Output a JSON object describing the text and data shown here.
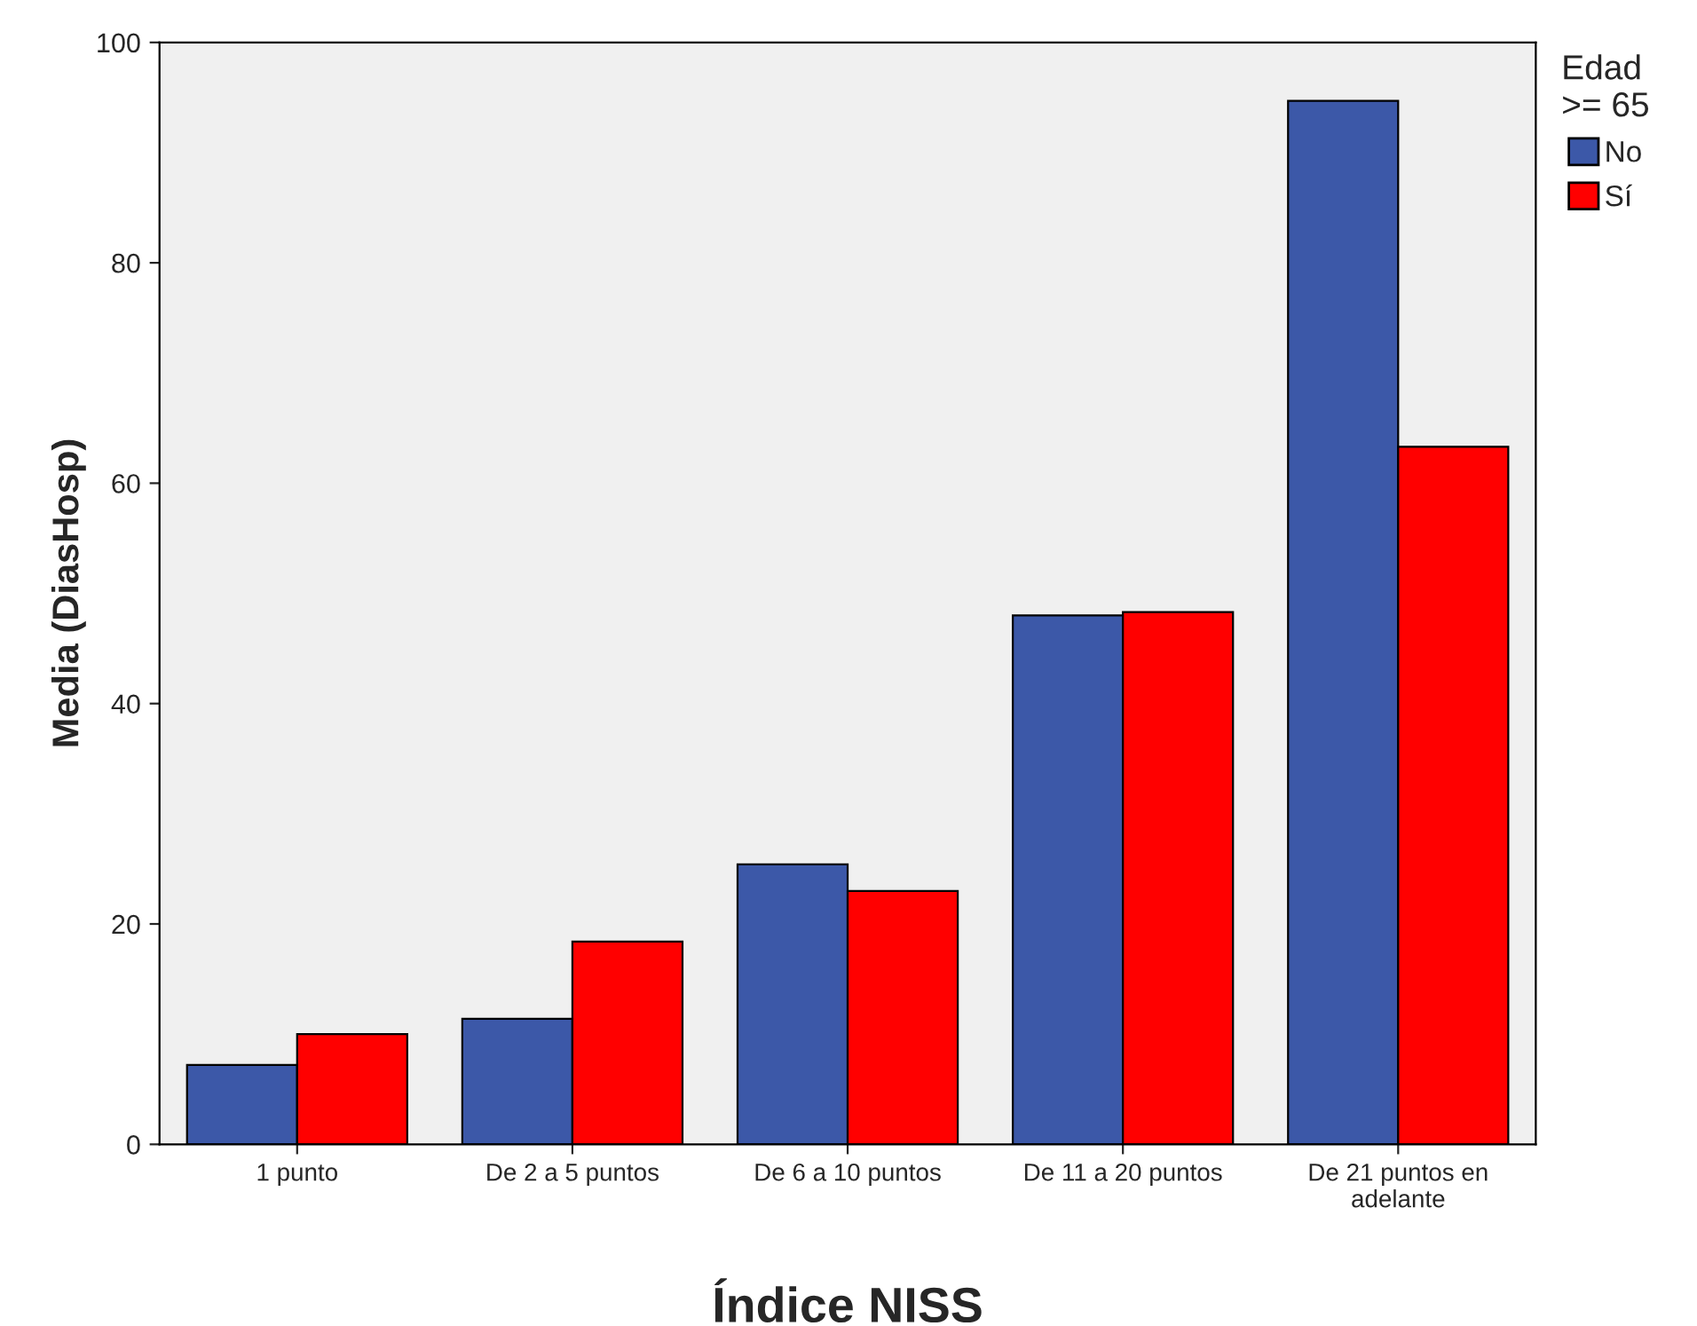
{
  "chart_data": {
    "type": "bar",
    "ylabel": "Media (DiasHosp)",
    "xlabel": "Índice NISS",
    "legend_title": "Edad\n>= 65",
    "categories": [
      "1 punto",
      "De 2 a 5 puntos",
      "De 6 a 10 puntos",
      "De 11 a 20 puntos",
      "De 21 puntos en\nadelante"
    ],
    "series": [
      {
        "name": "No",
        "color": "#3c58a8",
        "values": [
          7.2,
          11.4,
          25.4,
          48.0,
          94.7
        ]
      },
      {
        "name": "Sí",
        "color": "#ff0000",
        "values": [
          10.0,
          18.4,
          23.0,
          48.3,
          63.3
        ]
      }
    ],
    "ylim": [
      0,
      100
    ],
    "yticks": [
      0,
      20,
      40,
      60,
      80,
      100
    ],
    "grid": false,
    "legend": "right"
  }
}
